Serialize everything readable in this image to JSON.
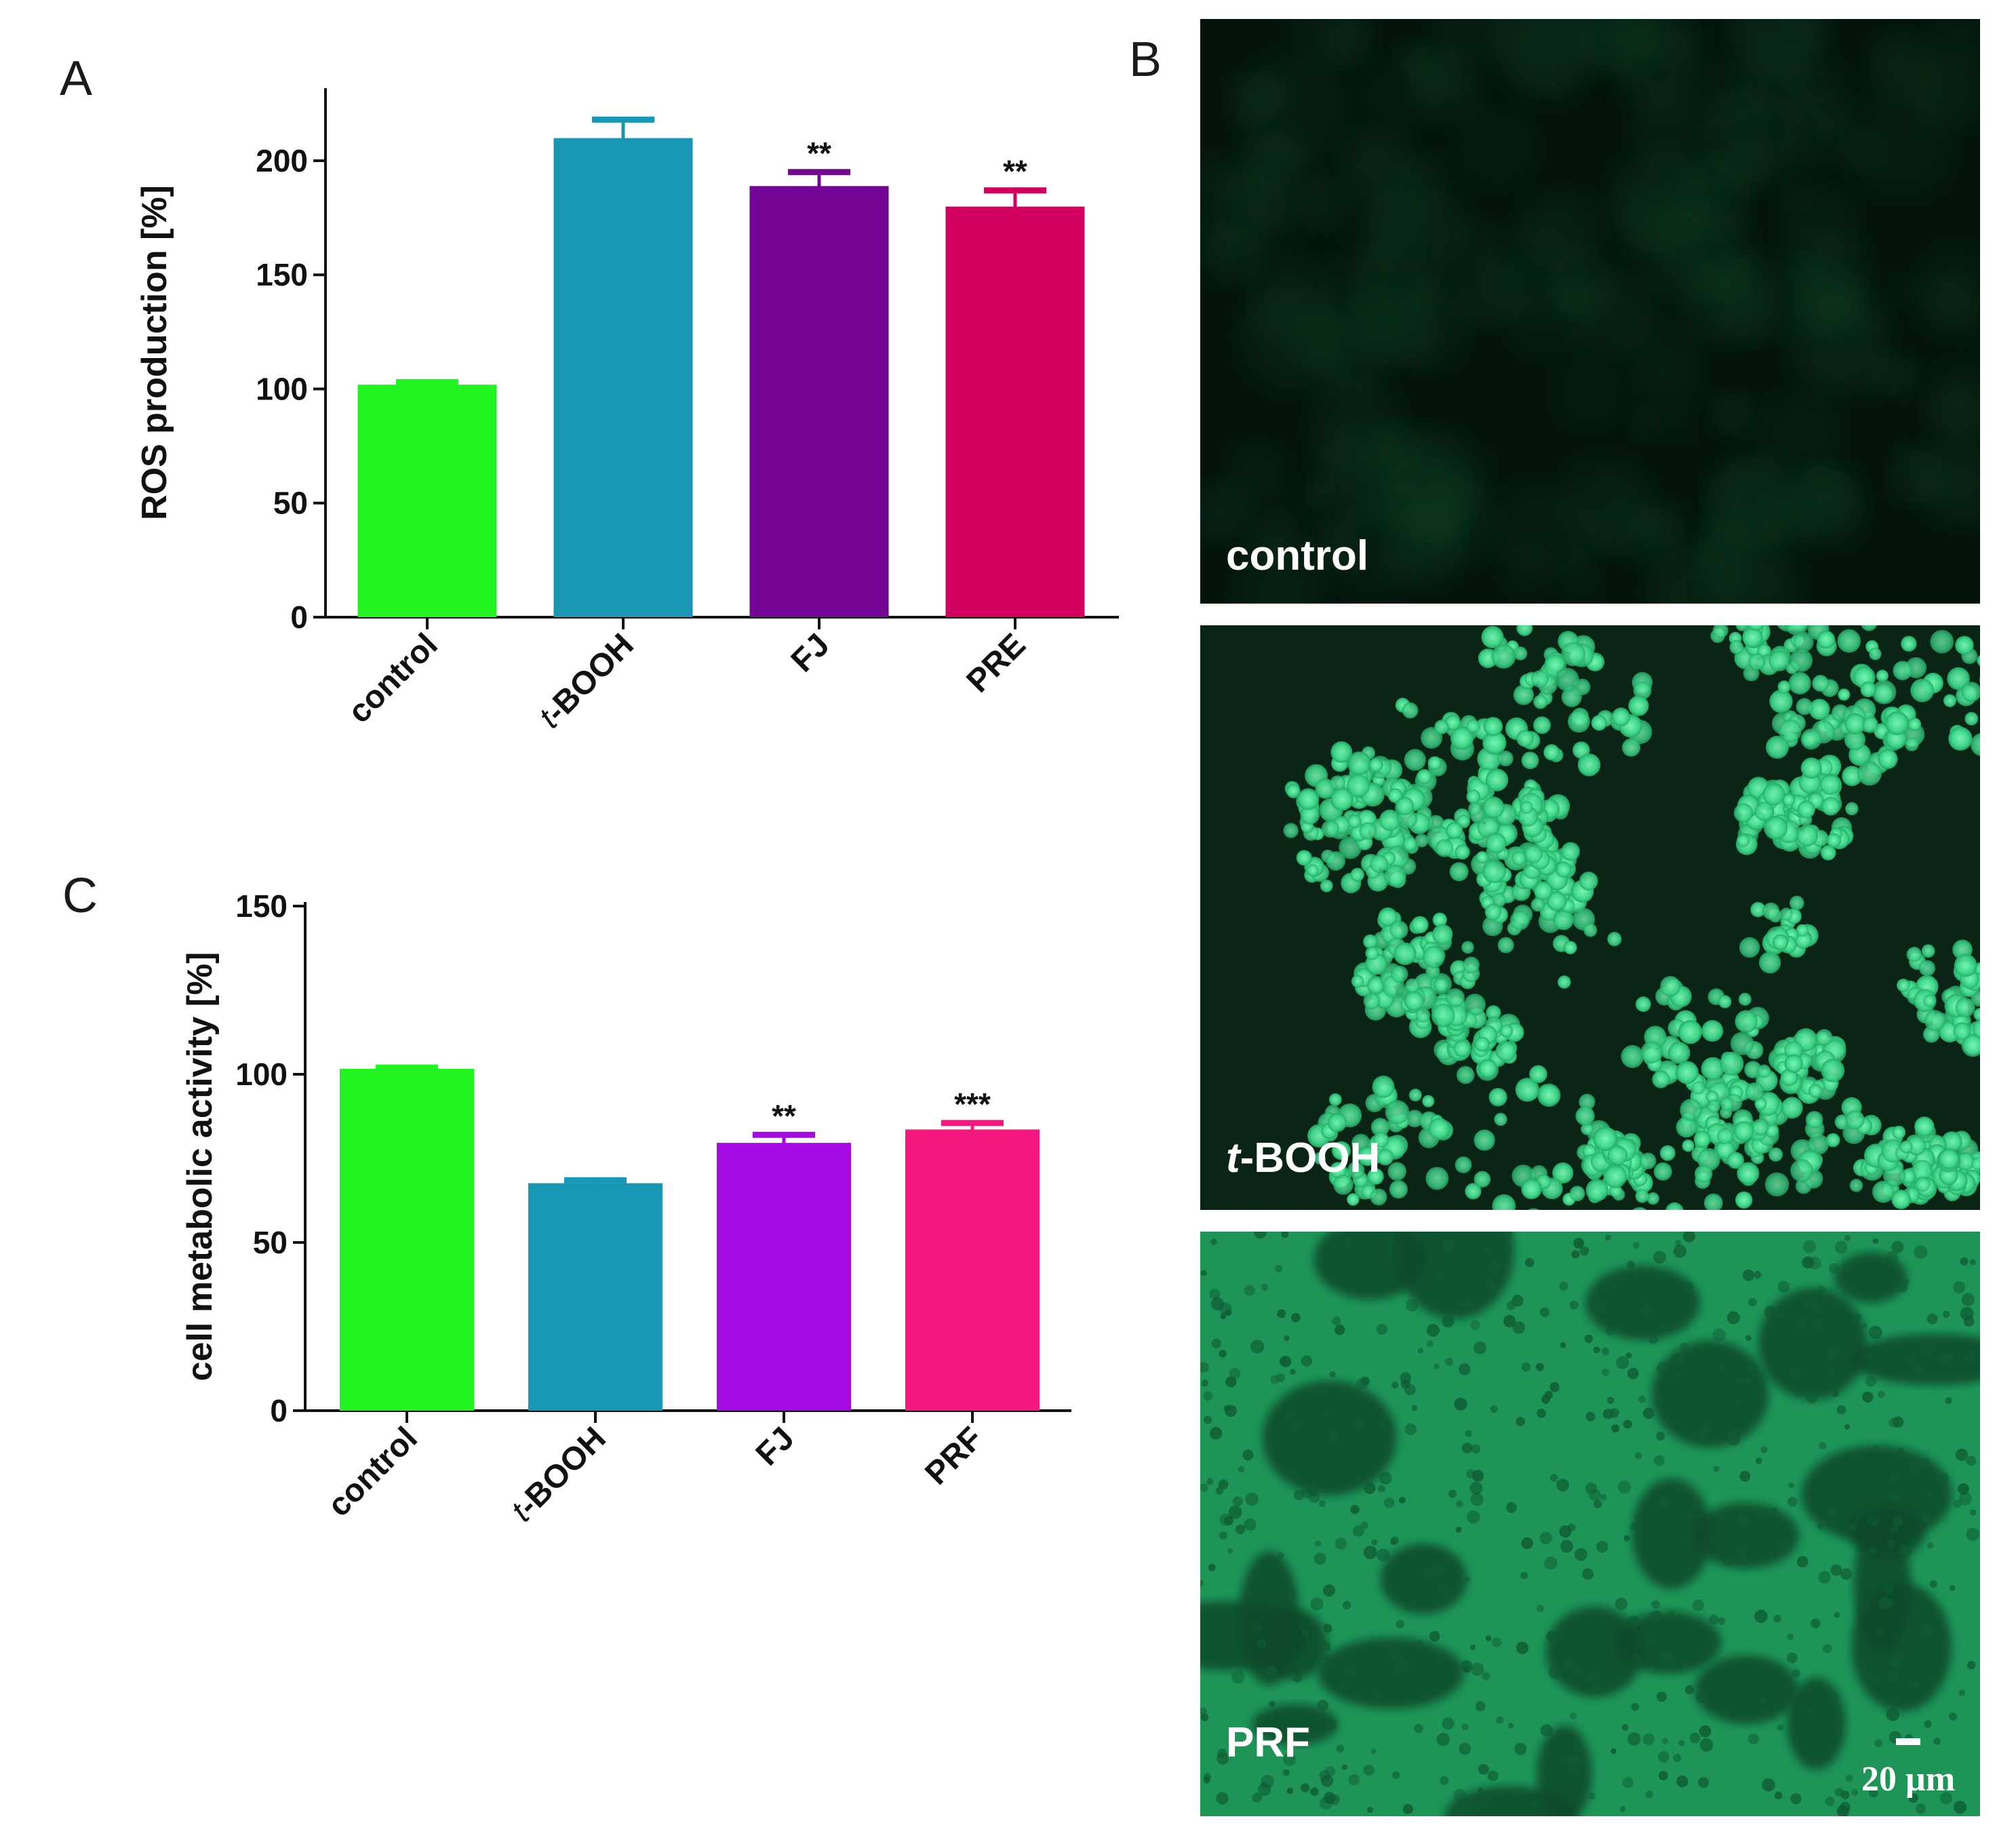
{
  "panels": {
    "a_letter": "A",
    "b_letter": "B",
    "c_letter": "C"
  },
  "chart_data": [
    {
      "type": "bar",
      "panel": "A",
      "ylabel": "ROS production [%]",
      "xlabel": "",
      "ylim": [
        0,
        230
      ],
      "yticks": [
        0,
        50,
        100,
        150,
        200
      ],
      "categories": [
        {
          "prefix": "",
          "text": "control"
        },
        {
          "prefix": "t",
          "text": "-BOOH"
        },
        {
          "prefix": "",
          "text": "FJ"
        },
        {
          "prefix": "",
          "text": "PRE"
        }
      ],
      "values": [
        101,
        209,
        188,
        179
      ],
      "errors": [
        2,
        9,
        7,
        8
      ],
      "colors": [
        "#22f522",
        "#1797b3",
        "#740594",
        "#d1005e"
      ],
      "significance": [
        "",
        "",
        "**",
        "**"
      ],
      "grid": false
    },
    {
      "type": "bar",
      "panel": "C",
      "ylabel": "cell metabolic activity [%]",
      "xlabel": "",
      "ylim": [
        0,
        150
      ],
      "yticks": [
        0,
        50,
        100,
        150
      ],
      "categories": [
        {
          "prefix": "",
          "text": "control"
        },
        {
          "prefix": "t",
          "text": "-BOOH"
        },
        {
          "prefix": "",
          "text": "FJ"
        },
        {
          "prefix": "",
          "text": "PRF"
        }
      ],
      "values": [
        101,
        67,
        79,
        83
      ],
      "errors": [
        1,
        1.5,
        3,
        2.5
      ],
      "colors": [
        "#22f522",
        "#1797b3",
        "#a60ae3",
        "#f5197f"
      ],
      "significance": [
        "",
        "",
        "**",
        "***"
      ],
      "grid": false
    }
  ],
  "micrographs": {
    "control": {
      "caption": "control",
      "tone": "#04140b"
    },
    "tbooh": {
      "caption_prefix": "t",
      "caption_text": "-BOOH",
      "tone": "#0a2416",
      "cell_color": "#3fd88a"
    },
    "prf": {
      "caption": "PRF",
      "tone": "#1e9457",
      "gap_color": "#0c4a2a"
    },
    "scale_bar": "20 µm"
  }
}
